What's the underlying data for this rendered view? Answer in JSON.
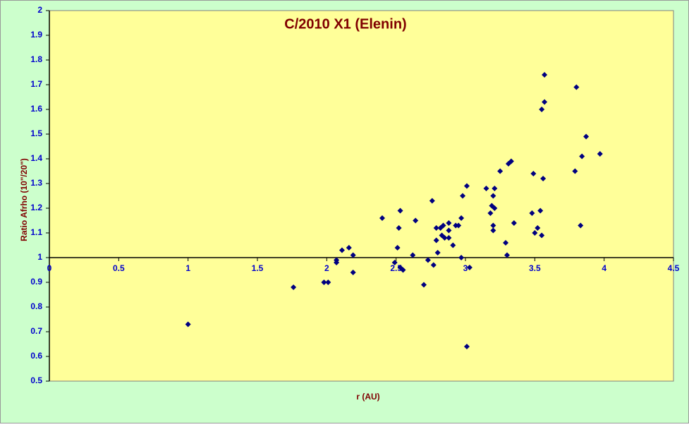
{
  "chart_data": {
    "type": "scatter",
    "title": "C/2010 X1 (Elenin)",
    "x_label": "r (AU)",
    "y_label": "Ratio Afrho  (10\"/20\")",
    "xlim": [
      0,
      4.5
    ],
    "xticks": [
      0,
      0.5,
      1,
      1.5,
      2,
      2.5,
      3,
      3.5,
      4,
      4.5
    ],
    "ylim": [
      0.5,
      2
    ],
    "yticks": [
      0.5,
      0.6,
      0.7,
      0.8,
      0.9,
      1,
      1.1,
      1.2,
      1.3,
      1.4,
      1.5,
      1.6,
      1.7,
      1.8,
      1.9,
      2
    ],
    "x_axis_crossing": 1,
    "series": [
      {
        "color": "#000080",
        "x": [
          1.0,
          1.76,
          1.98,
          2.01,
          2.07,
          2.07,
          2.11,
          2.16,
          2.19,
          2.19,
          2.4,
          2.49,
          2.51,
          2.52,
          2.53,
          2.53,
          2.55,
          2.62,
          2.64,
          2.7,
          2.73,
          2.76,
          2.77,
          2.79,
          2.79,
          2.8,
          2.82,
          2.83,
          2.84,
          2.85,
          2.88,
          2.88,
          2.88,
          2.91,
          2.93,
          2.95,
          2.97,
          2.97,
          2.98,
          3.01,
          3.01,
          3.03,
          3.15,
          3.19,
          3.18,
          3.2,
          3.2,
          3.2,
          3.21,
          3.21,
          3.25,
          3.29,
          3.3,
          3.31,
          3.33,
          3.35,
          3.49,
          3.48,
          3.5,
          3.52,
          3.54,
          3.55,
          3.55,
          3.56,
          3.57,
          3.57,
          3.79,
          3.8,
          3.83,
          3.84,
          3.87,
          3.97
        ],
        "values": [
          0.73,
          0.88,
          0.9,
          0.9,
          0.98,
          0.99,
          1.03,
          1.04,
          1.01,
          0.94,
          1.16,
          0.98,
          1.04,
          1.12,
          1.19,
          0.96,
          0.95,
          1.01,
          1.15,
          0.89,
          0.99,
          1.23,
          0.97,
          1.07,
          1.12,
          1.02,
          1.12,
          1.09,
          1.13,
          1.08,
          1.11,
          1.14,
          1.08,
          1.05,
          1.13,
          1.13,
          1.0,
          1.16,
          1.25,
          1.29,
          0.64,
          0.96,
          1.28,
          1.21,
          1.18,
          1.25,
          1.13,
          1.11,
          1.28,
          1.2,
          1.35,
          1.06,
          1.01,
          1.38,
          1.39,
          1.14,
          1.34,
          1.18,
          1.1,
          1.12,
          1.19,
          1.6,
          1.09,
          1.32,
          1.74,
          1.63,
          1.35,
          1.69,
          1.13,
          1.41,
          1.49,
          1.42
        ]
      }
    ]
  }
}
